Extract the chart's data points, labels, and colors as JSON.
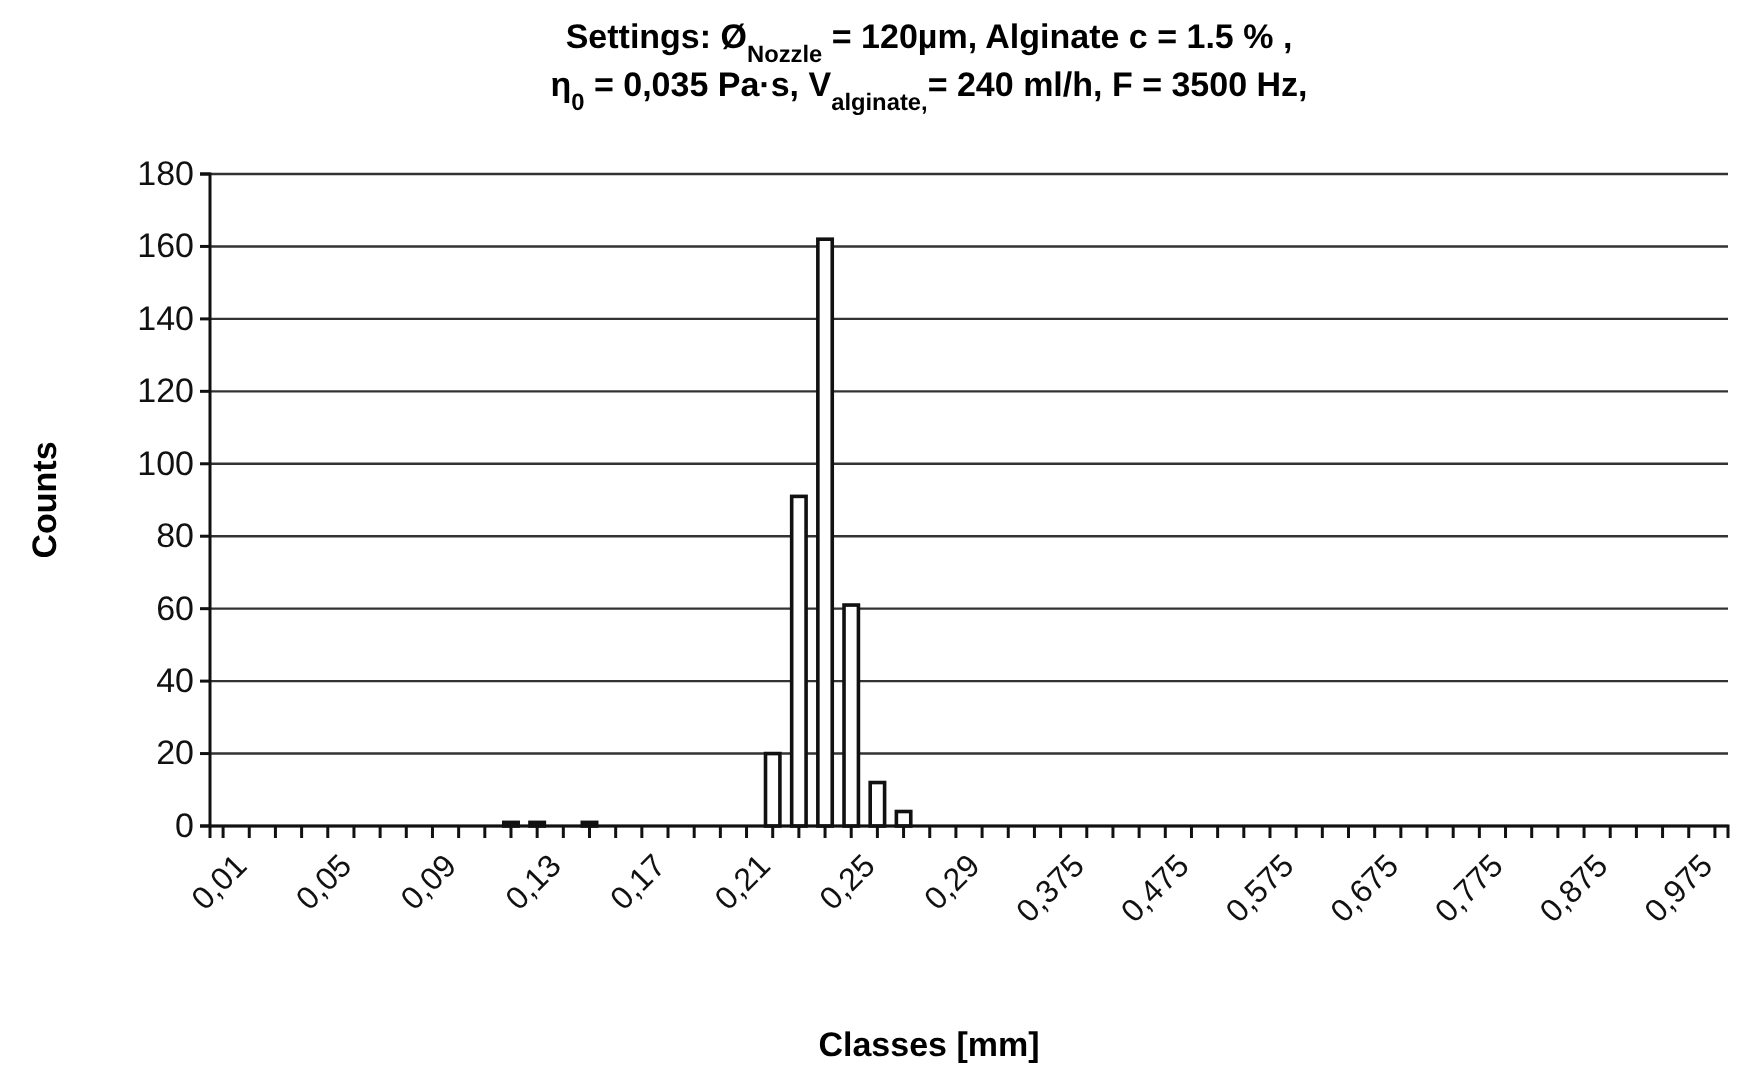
{
  "chart_data": {
    "type": "bar",
    "title": "Settings: Ø$_{Nozzle}$ = 120µm, Alginate c = 1.5 % ,\nη$_{0}$ = 0,035 Pa·s, V$_{alginate,}$= 240 ml/h, F = 3500 Hz,",
    "xlabel": "Classes [mm]",
    "ylabel": "Counts",
    "categories": [
      "0,01",
      null,
      null,
      null,
      "0,05",
      null,
      null,
      null,
      "0,09",
      null,
      null,
      null,
      "0,13",
      null,
      null,
      null,
      "0,17",
      null,
      null,
      null,
      "0,21",
      null,
      null,
      null,
      "0,25",
      null,
      null,
      null,
      "0,29",
      null,
      null,
      null,
      "0,375",
      null,
      null,
      null,
      "0,475",
      null,
      null,
      null,
      "0,575",
      null,
      null,
      null,
      "0,675",
      null,
      null,
      null,
      "0,775",
      null,
      null,
      null,
      "0,875",
      null,
      null,
      null,
      "0,975",
      null
    ],
    "values": [
      0,
      0,
      0,
      0,
      0,
      0,
      0,
      0,
      0,
      0,
      0,
      1,
      1,
      0,
      1,
      0,
      0,
      0,
      0,
      0,
      0,
      20,
      91,
      162,
      61,
      12,
      4,
      0,
      0,
      0,
      0,
      0,
      0,
      0,
      0,
      0,
      0,
      0,
      0,
      0,
      0,
      0,
      0,
      0,
      0,
      0,
      0,
      0,
      0,
      0,
      0,
      0,
      0,
      0,
      0,
      0,
      0,
      0
    ],
    "color": "#ffffff",
    "ylim": [
      0,
      180
    ],
    "yticks": [
      0,
      20,
      40,
      60,
      80,
      100,
      120,
      140,
      160,
      180
    ],
    "grid": "y"
  }
}
